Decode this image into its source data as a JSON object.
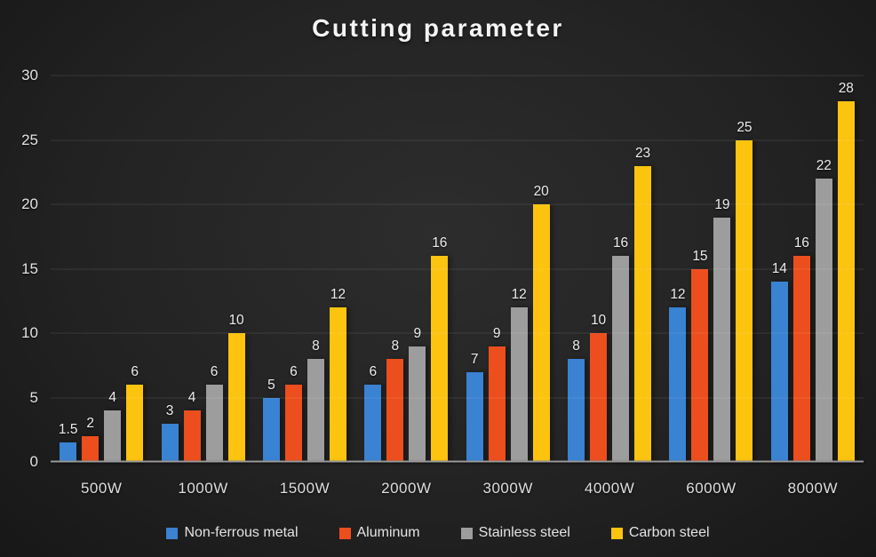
{
  "chart_data": {
    "type": "bar",
    "title": "Cutting parameter",
    "xlabel": "",
    "ylabel": "",
    "ylim": [
      0,
      30
    ],
    "yticks": [
      0,
      5,
      10,
      15,
      20,
      25,
      30
    ],
    "grid": true,
    "legend_position": "bottom",
    "categories": [
      "500W",
      "1000W",
      "1500W",
      "2000W",
      "3000W",
      "4000W",
      "6000W",
      "8000W"
    ],
    "series": [
      {
        "name": "Non-ferrous metal",
        "color": "#3a82d2",
        "values": [
          1.5,
          3,
          5,
          6,
          7,
          8,
          12,
          14
        ]
      },
      {
        "name": "Aluminum",
        "color": "#ec4e1d",
        "values": [
          2,
          4,
          6,
          8,
          9,
          10,
          15,
          16
        ]
      },
      {
        "name": "Stainless steel",
        "color": "#9d9d9d",
        "values": [
          4,
          6,
          8,
          9,
          12,
          16,
          19,
          22
        ]
      },
      {
        "name": "Carbon steel",
        "color": "#fcc30f",
        "values": [
          6,
          10,
          12,
          16,
          20,
          23,
          25,
          28
        ]
      }
    ],
    "colors": {
      "background": "#232323",
      "gridline": "rgba(255,255,255,0.11)",
      "axis_line": "#9a9a9a",
      "text": "#e4e4e4"
    }
  }
}
